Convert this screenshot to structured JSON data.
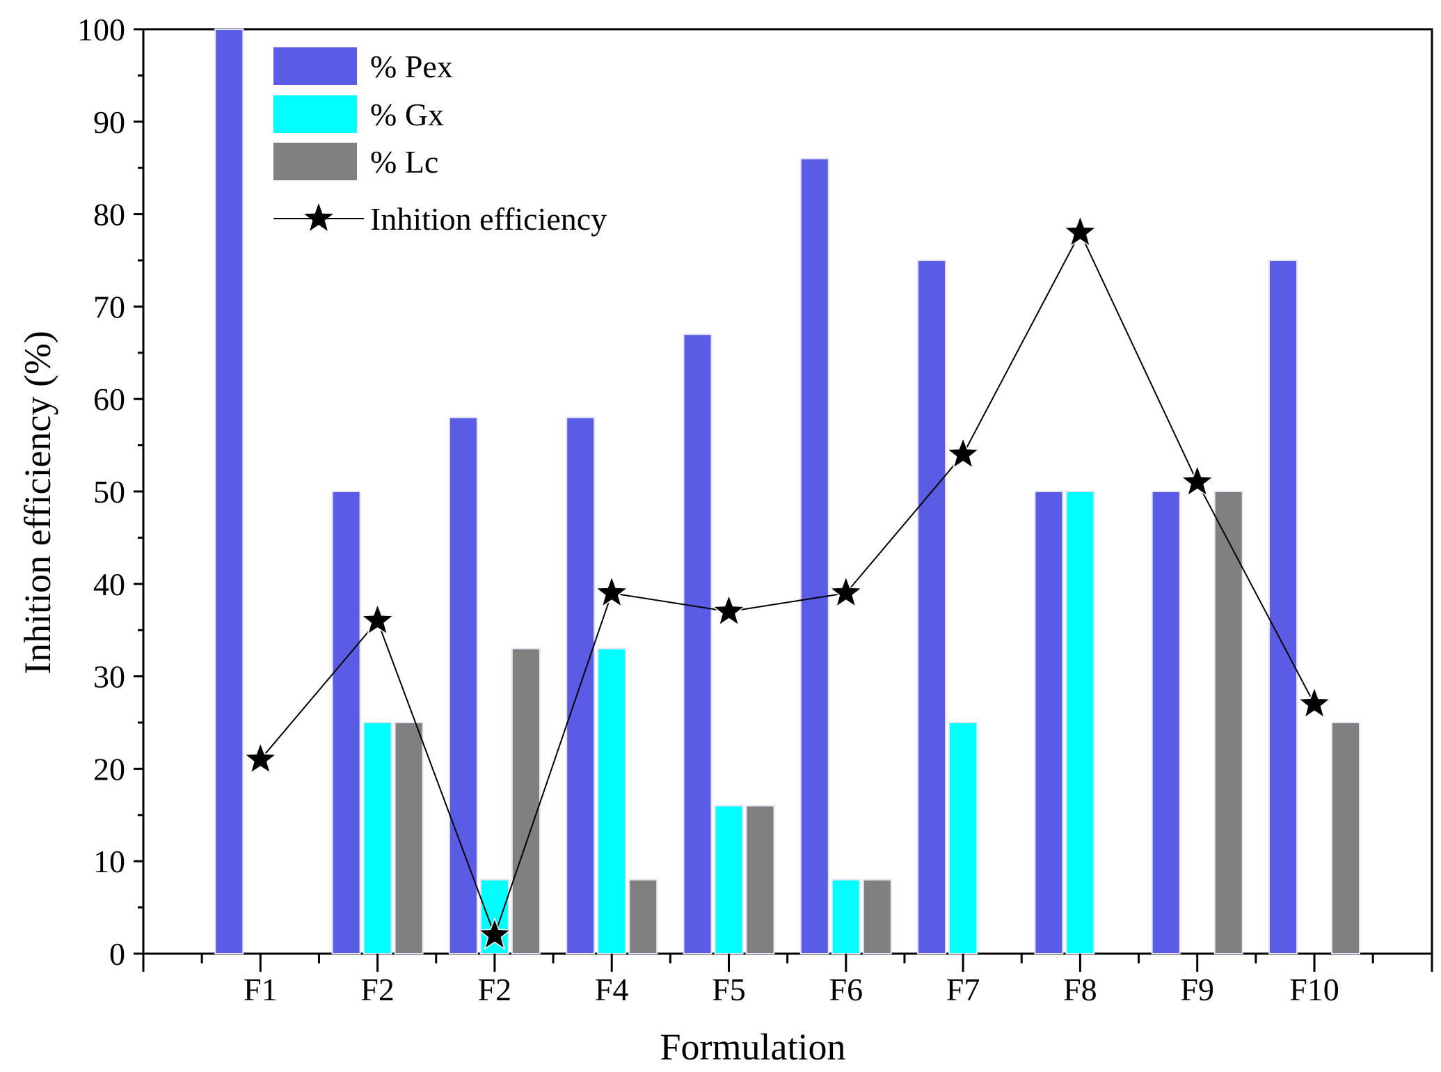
{
  "chart_data": {
    "type": "bar",
    "title": "",
    "xlabel": "Formulation",
    "ylabel": "Inhition efficiency (%)",
    "ylim": [
      0,
      100
    ],
    "yticks": [
      0,
      10,
      20,
      30,
      40,
      50,
      60,
      70,
      80,
      90,
      100
    ],
    "categories": [
      "F1",
      "F2",
      "F2",
      "F4",
      "F5",
      "F6",
      "F7",
      "F8",
      "F9",
      "F10"
    ],
    "series": [
      {
        "name": "% Pex",
        "kind": "bar",
        "color": "#5b5ce6",
        "values": [
          100,
          50,
          58,
          58,
          67,
          86,
          75,
          50,
          50,
          75
        ]
      },
      {
        "name": "% Gx",
        "kind": "bar",
        "color": "#00ffff",
        "values": [
          0,
          25,
          8,
          33,
          16,
          8,
          25,
          50,
          0,
          0
        ]
      },
      {
        "name": "% Lc",
        "kind": "bar",
        "color": "#808080",
        "values": [
          0,
          25,
          33,
          8,
          16,
          8,
          0,
          0,
          50,
          25
        ]
      },
      {
        "name": "Inhition efficiency",
        "kind": "line",
        "marker": "star",
        "color": "#000000",
        "values": [
          21,
          36,
          2,
          39,
          37,
          39,
          54,
          78,
          51,
          27
        ]
      }
    ],
    "legend_position": "top-left",
    "grid": false
  }
}
